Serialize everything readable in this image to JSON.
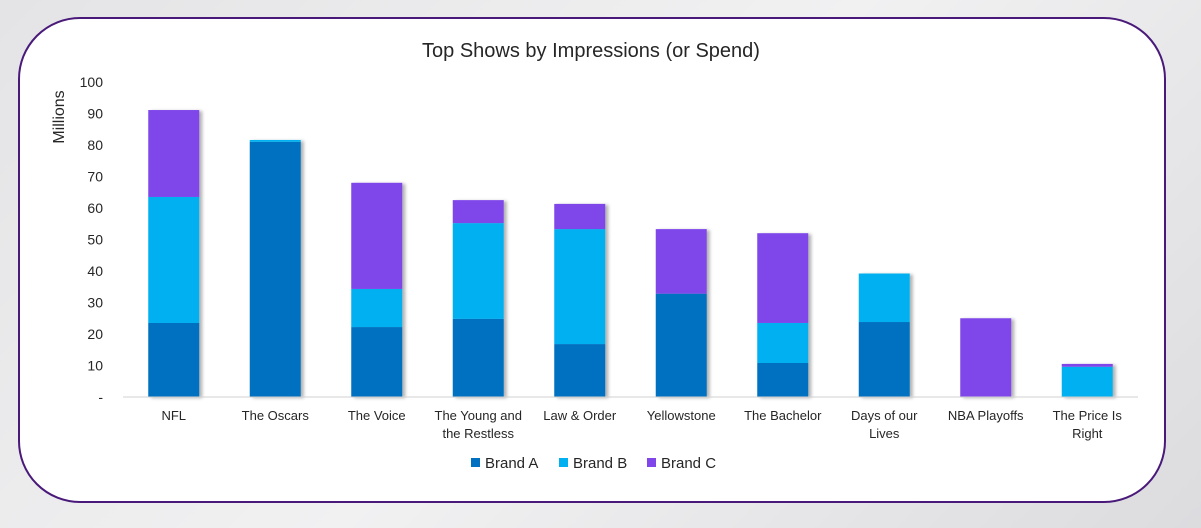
{
  "chart_data": {
    "type": "bar",
    "stacked": true,
    "title": "Top Shows by Impressions (or Spend)",
    "ylabel": "Millions",
    "xlabel": "",
    "ylim": [
      0,
      100
    ],
    "yticks": [
      0,
      10,
      20,
      30,
      40,
      50,
      60,
      70,
      80,
      90,
      100
    ],
    "ytick_labels": [
      "-",
      "10",
      "20",
      "30",
      "40",
      "50",
      "60",
      "70",
      "80",
      "90",
      "100"
    ],
    "categories": [
      [
        "NFL"
      ],
      [
        "The Oscars"
      ],
      [
        "The Voice"
      ],
      [
        "The Young and",
        "the Restless"
      ],
      [
        "Law & Order"
      ],
      [
        "Yellowstone"
      ],
      [
        "The Bachelor"
      ],
      [
        "Days of our",
        "Lives"
      ],
      [
        "NBA Playoffs"
      ],
      [
        "The Price Is",
        "Right"
      ]
    ],
    "series": [
      {
        "name": "Brand A",
        "color": "#0070c0",
        "values": [
          23.5,
          81.0,
          22.2,
          24.8,
          16.8,
          32.8,
          10.8,
          23.8,
          0,
          0
        ]
      },
      {
        "name": "Brand B",
        "color": "#00b0f0",
        "values": [
          40.0,
          0.6,
          12.1,
          30.4,
          36.5,
          0,
          12.7,
          15.4,
          0,
          9.6
        ]
      },
      {
        "name": "Brand C",
        "color": "#7f47ea",
        "values": [
          27.6,
          0,
          33.7,
          7.3,
          8.0,
          20.5,
          28.5,
          0,
          25.0,
          0.9
        ]
      }
    ],
    "grid": false,
    "legend_position": "bottom"
  },
  "frame_color": "#4a1a7a"
}
